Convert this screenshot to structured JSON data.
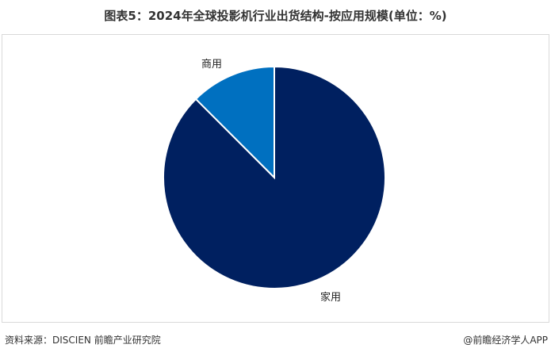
{
  "title": "图表5：2024年全球投影机行业出货结构-按应用规模(单位：%)",
  "footer": {
    "source": "资料来源：DISCIEN 前瞻产业研究院",
    "brand": "@前瞻经济学人APP"
  },
  "watermark": "前瞻产业研究院",
  "chart_data": {
    "type": "pie",
    "title": "图表5：2024年全球投影机行业出货结构-按应用规模(单位：%)",
    "categories": [
      "商用",
      "家用"
    ],
    "values": [
      12.5,
      87.5
    ],
    "colors": [
      "#0070c0",
      "#002060"
    ],
    "start": "top, counter-clockwise for 商用",
    "legend": "none; labels outside slices"
  }
}
